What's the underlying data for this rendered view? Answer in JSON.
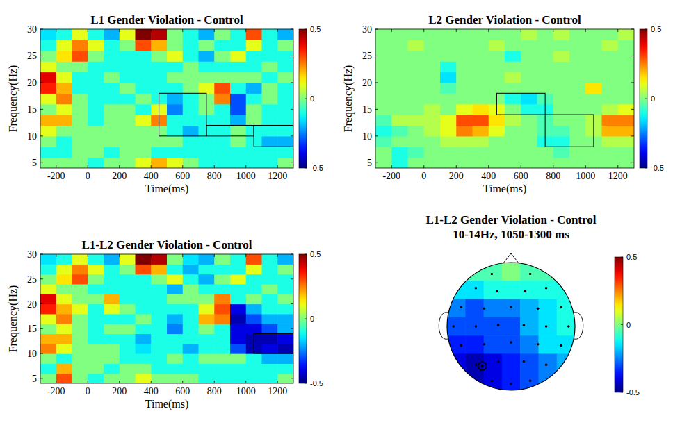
{
  "chart_data": [
    {
      "type": "heatmap",
      "title": "L1 Gender Violation - Control",
      "x_label": "Time(ms)",
      "y_label": "Frequency(Hz)",
      "xlim": [
        -300,
        1300
      ],
      "ylim": [
        4,
        30
      ],
      "xticks": [
        -200,
        0,
        200,
        400,
        600,
        800,
        1000,
        1200
      ],
      "yticks": [
        5,
        10,
        15,
        20,
        25,
        30
      ],
      "x_edges": [
        -300,
        -200,
        -100,
        0,
        100,
        200,
        300,
        400,
        500,
        600,
        700,
        800,
        900,
        1000,
        1100,
        1200,
        1300
      ],
      "y_edges": [
        4,
        6,
        8,
        10,
        12,
        14,
        16,
        18,
        20,
        22,
        24,
        26,
        28,
        30
      ],
      "cells": [
        [
          0,
          0,
          0,
          -0.1,
          0,
          0,
          0.1,
          0.2,
          0.1,
          0,
          -0.1,
          -0.1,
          -0.1,
          -0.1,
          -0.1,
          0
        ],
        [
          -0.1,
          -0.1,
          0,
          0,
          -0.1,
          0,
          0,
          -0.1,
          -0.1,
          -0.1,
          -0.1,
          -0.1,
          -0.1,
          -0.1,
          -0.1,
          -0.1
        ],
        [
          0,
          -0.1,
          0,
          0,
          0,
          0,
          0,
          0,
          0,
          -0.1,
          -0.1,
          -0.1,
          0,
          -0.1,
          -0.2,
          -0.2
        ],
        [
          0.1,
          0,
          0,
          0,
          0,
          0,
          0,
          0,
          -0.1,
          -0.2,
          -0.1,
          -0.1,
          0,
          -0.1,
          -0.1,
          -0.1
        ],
        [
          0.2,
          0.2,
          0,
          -0.1,
          0,
          0,
          0.1,
          0.25,
          -0.1,
          -0.1,
          -0.1,
          -0.1,
          -0.2,
          0,
          -0.1,
          -0.1
        ],
        [
          0,
          0.1,
          0,
          -0.1,
          0,
          0,
          -0.1,
          0.1,
          -0.25,
          -0.1,
          0,
          -0.1,
          -0.3,
          0,
          -0.1,
          -0.1
        ],
        [
          0.1,
          0.25,
          0,
          -0.1,
          -0.1,
          -0.1,
          0,
          -0.1,
          -0.2,
          -0.1,
          0,
          0.25,
          -0.3,
          -0.1,
          0,
          -0.1
        ],
        [
          0.35,
          0.2,
          -0.1,
          -0.1,
          -0.1,
          0,
          -0.1,
          -0.1,
          -0.1,
          0,
          0.1,
          0.3,
          -0.1,
          -0.2,
          0,
          -0.1
        ],
        [
          0.4,
          0.1,
          -0.1,
          -0.1,
          0,
          -0.1,
          -0.1,
          -0.1,
          0,
          0,
          0,
          0,
          0,
          0,
          -0.1,
          0
        ],
        [
          0.1,
          0,
          0,
          -0.1,
          -0.1,
          -0.1,
          -0.1,
          -0.1,
          -0.1,
          0,
          -0.1,
          -0.1,
          -0.1,
          -0.1,
          0,
          -0.1
        ],
        [
          0,
          0.15,
          0.3,
          0,
          -0.1,
          -0.1,
          -0.1,
          0,
          0.1,
          -0.1,
          -0.2,
          0,
          0.1,
          -0.1,
          -0.1,
          -0.1
        ],
        [
          -0.1,
          0.1,
          0.25,
          0.1,
          -0.1,
          0,
          0.3,
          0.2,
          0,
          -0.1,
          0,
          -0.1,
          -0.1,
          0.1,
          -0.1,
          0
        ],
        [
          -0.15,
          -0.1,
          0.1,
          -0.1,
          -0.2,
          0.1,
          0.5,
          0.45,
          0,
          -0.1,
          -0.2,
          0,
          -0.1,
          0.3,
          -0.1,
          -0.2
        ]
      ],
      "boxes": [
        {
          "x": [
            450,
            750
          ],
          "y": [
            10,
            18
          ]
        },
        {
          "x": [
            750,
            1050
          ],
          "y": [
            10,
            12
          ]
        },
        {
          "x": [
            1050,
            1300
          ],
          "y": [
            8,
            12
          ]
        }
      ],
      "colorbar": {
        "range": [
          -0.5,
          0.5
        ],
        "ticks": [
          -0.5,
          0,
          0.5
        ]
      }
    },
    {
      "type": "heatmap",
      "title": "L2 Gender Violation - Control",
      "x_label": "Time(ms)",
      "y_label": "Frequency(Hz)",
      "xlim": [
        -300,
        1300
      ],
      "ylim": [
        4,
        30
      ],
      "xticks": [
        -200,
        0,
        200,
        400,
        600,
        800,
        1000,
        1200
      ],
      "yticks": [
        5,
        10,
        15,
        20,
        25,
        30
      ],
      "x_edges": [
        -300,
        -200,
        -100,
        0,
        100,
        200,
        300,
        400,
        500,
        600,
        700,
        800,
        900,
        1000,
        1100,
        1200,
        1300
      ],
      "y_edges": [
        4,
        6,
        8,
        10,
        12,
        14,
        16,
        18,
        20,
        22,
        24,
        26,
        28,
        30
      ],
      "cells": [
        [
          0,
          -0.1,
          0,
          0,
          0,
          0,
          0,
          0,
          0,
          0,
          0,
          0,
          0,
          0,
          0,
          0
        ],
        [
          0,
          -0.1,
          -0.05,
          0,
          0,
          0,
          0,
          0,
          0,
          0,
          0,
          -0.05,
          0,
          0,
          0,
          0
        ],
        [
          -0.05,
          0,
          0,
          0,
          0.05,
          0.05,
          0.05,
          0,
          0,
          0,
          -0.1,
          -0.1,
          0,
          0,
          0.05,
          0.05
        ],
        [
          -0.1,
          -0.05,
          0,
          0.05,
          0.1,
          0.25,
          0.2,
          0.1,
          0,
          0,
          -0.05,
          -0.05,
          0,
          0.05,
          0.2,
          0.2
        ],
        [
          -0.05,
          0.05,
          0.05,
          0.05,
          0.1,
          0.3,
          0.3,
          0.15,
          0.05,
          0,
          -0.05,
          0,
          0,
          0.05,
          0.25,
          0.25
        ],
        [
          0,
          0,
          0,
          0.05,
          0,
          0.1,
          0.15,
          0.1,
          0,
          -0.1,
          -0.1,
          0,
          0,
          0,
          0.05,
          0.1
        ],
        [
          0,
          0,
          0,
          0,
          0,
          0,
          0,
          0,
          -0.1,
          -0.15,
          -0.05,
          0,
          0,
          0,
          0,
          0
        ],
        [
          0,
          0,
          0,
          0,
          -0.05,
          0,
          0,
          0,
          0,
          0,
          0,
          0,
          0,
          0.15,
          0,
          0
        ],
        [
          0,
          0,
          0,
          0,
          -0.15,
          0,
          0,
          0,
          0.05,
          0,
          0,
          0,
          0,
          0,
          0,
          0
        ],
        [
          0,
          0,
          0,
          0,
          -0.1,
          0,
          0,
          0,
          0,
          0,
          0,
          0,
          0,
          0,
          0,
          0
        ],
        [
          0,
          0,
          0,
          0,
          0,
          0,
          0,
          0,
          -0.1,
          0,
          0,
          0.05,
          0,
          0,
          0,
          0
        ],
        [
          0,
          0,
          0.05,
          0,
          0,
          0,
          0,
          0.05,
          0,
          0,
          0,
          0,
          0,
          0,
          0.05,
          0
        ],
        [
          0,
          0,
          0,
          0,
          0,
          0,
          0,
          0,
          0,
          0.05,
          0,
          0.05,
          0,
          0,
          0,
          0.05
        ]
      ],
      "boxes": [
        {
          "x": [
            450,
            750
          ],
          "y": [
            14,
            18
          ]
        },
        {
          "x": [
            750,
            1050
          ],
          "y": [
            8,
            14
          ]
        }
      ],
      "colorbar": {
        "range": [
          -0.5,
          0.5
        ],
        "ticks": [
          -0.5,
          0,
          0.5
        ]
      }
    },
    {
      "type": "heatmap",
      "title": "L1-L2 Gender Violation - Control",
      "x_label": "Time(ms)",
      "y_label": "Frequency(Hz)",
      "xlim": [
        -300,
        1300
      ],
      "ylim": [
        4,
        30
      ],
      "xticks": [
        -200,
        0,
        200,
        400,
        600,
        800,
        1000,
        1200
      ],
      "yticks": [
        5,
        10,
        15,
        20,
        25,
        30
      ],
      "x_edges": [
        -300,
        -200,
        -100,
        0,
        100,
        200,
        300,
        400,
        500,
        600,
        700,
        800,
        900,
        1000,
        1100,
        1200,
        1300
      ],
      "y_edges": [
        4,
        6,
        8,
        10,
        12,
        14,
        16,
        18,
        20,
        22,
        24,
        26,
        28,
        30
      ],
      "cells": [
        [
          0,
          0.3,
          0,
          -0.1,
          0,
          0,
          0.1,
          0,
          0,
          0,
          -0.1,
          -0.1,
          -0.1,
          -0.1,
          -0.1,
          0
        ],
        [
          -0.1,
          0.2,
          0,
          0,
          -0.1,
          0,
          0,
          -0.1,
          -0.1,
          -0.1,
          -0.1,
          -0.1,
          -0.1,
          -0.1,
          -0.1,
          -0.1
        ],
        [
          0,
          -0.1,
          0,
          0,
          0,
          -0.1,
          -0.1,
          -0.1,
          0,
          -0.1,
          0,
          0,
          0,
          -0.1,
          -0.2,
          -0.2
        ],
        [
          0.25,
          0.1,
          0,
          0,
          0,
          -0.1,
          -0.15,
          -0.1,
          -0.1,
          -0.2,
          -0.1,
          -0.1,
          -0.3,
          -0.45,
          -0.4,
          -0.45
        ],
        [
          0.2,
          0.2,
          0,
          -0.1,
          -0.1,
          -0.1,
          -0.2,
          -0.1,
          -0.1,
          -0.1,
          -0.1,
          -0.1,
          -0.4,
          -0.45,
          -0.45,
          -0.4
        ],
        [
          0,
          0.1,
          0,
          -0.1,
          0,
          0,
          -0.1,
          -0.1,
          -0.25,
          -0.1,
          0,
          -0.1,
          -0.4,
          -0.4,
          -0.3,
          -0.2
        ],
        [
          0.1,
          0.25,
          0,
          -0.1,
          -0.1,
          -0.1,
          0,
          -0.1,
          -0.2,
          -0.1,
          0.2,
          0.25,
          -0.45,
          -0.3,
          -0.2,
          -0.2
        ],
        [
          0.35,
          0.2,
          0.1,
          -0.1,
          0.1,
          0,
          -0.1,
          -0.1,
          -0.1,
          -0.1,
          0.1,
          0.3,
          -0.4,
          -0.2,
          -0.1,
          -0.1
        ],
        [
          0.4,
          0.1,
          0,
          0,
          0.2,
          -0.1,
          -0.1,
          -0.1,
          0,
          0,
          0,
          0.25,
          -0.1,
          0,
          -0.1,
          0
        ],
        [
          0.1,
          0,
          0,
          -0.1,
          -0.1,
          -0.1,
          -0.1,
          -0.1,
          -0.2,
          0,
          -0.1,
          -0.1,
          -0.1,
          -0.1,
          0,
          -0.1
        ],
        [
          0,
          0.15,
          0.3,
          0,
          -0.1,
          -0.1,
          -0.1,
          0,
          0.1,
          -0.1,
          -0.2,
          0,
          0.1,
          -0.1,
          -0.1,
          -0.1
        ],
        [
          -0.1,
          0.1,
          0.25,
          0.1,
          -0.1,
          0,
          0.3,
          0.2,
          -0.1,
          -0.2,
          -0.1,
          -0.1,
          -0.1,
          0.1,
          -0.1,
          0
        ],
        [
          -0.15,
          -0.1,
          0.1,
          -0.1,
          -0.2,
          0.1,
          0.5,
          0.45,
          0,
          -0.15,
          -0.2,
          0,
          -0.1,
          0.3,
          -0.1,
          -0.2
        ]
      ],
      "boxes": [
        {
          "x": [
            1050,
            1300
          ],
          "y": [
            10,
            14
          ]
        }
      ],
      "colorbar": {
        "range": [
          -0.5,
          0.5
        ],
        "ticks": [
          -0.5,
          0,
          0.5
        ]
      }
    },
    {
      "type": "topomap",
      "title": "L1-L2 Gender Violation - Control",
      "subtitle": "10-14Hz, 1050-1300 ms",
      "cells": [
        [
          -0.05,
          -0.05,
          -0.05,
          0,
          -0.05,
          -0.05,
          -0.05
        ],
        [
          -0.15,
          -0.15,
          -0.1,
          -0.1,
          -0.1,
          -0.1,
          -0.1
        ],
        [
          -0.25,
          -0.3,
          -0.25,
          -0.25,
          -0.2,
          -0.15,
          -0.1
        ],
        [
          -0.3,
          -0.3,
          -0.3,
          -0.3,
          -0.2,
          -0.15,
          -0.1
        ],
        [
          -0.35,
          -0.35,
          -0.3,
          -0.3,
          -0.25,
          -0.15,
          -0.15
        ],
        [
          -0.4,
          -0.45,
          -0.4,
          -0.35,
          -0.3,
          -0.25,
          -0.2
        ],
        [
          -0.45,
          -0.45,
          -0.4,
          -0.35,
          -0.3,
          -0.25,
          -0.2
        ]
      ],
      "colorbar": {
        "range": [
          -0.5,
          0.5
        ],
        "ticks": [
          -0.5,
          0,
          0.5
        ]
      }
    }
  ]
}
